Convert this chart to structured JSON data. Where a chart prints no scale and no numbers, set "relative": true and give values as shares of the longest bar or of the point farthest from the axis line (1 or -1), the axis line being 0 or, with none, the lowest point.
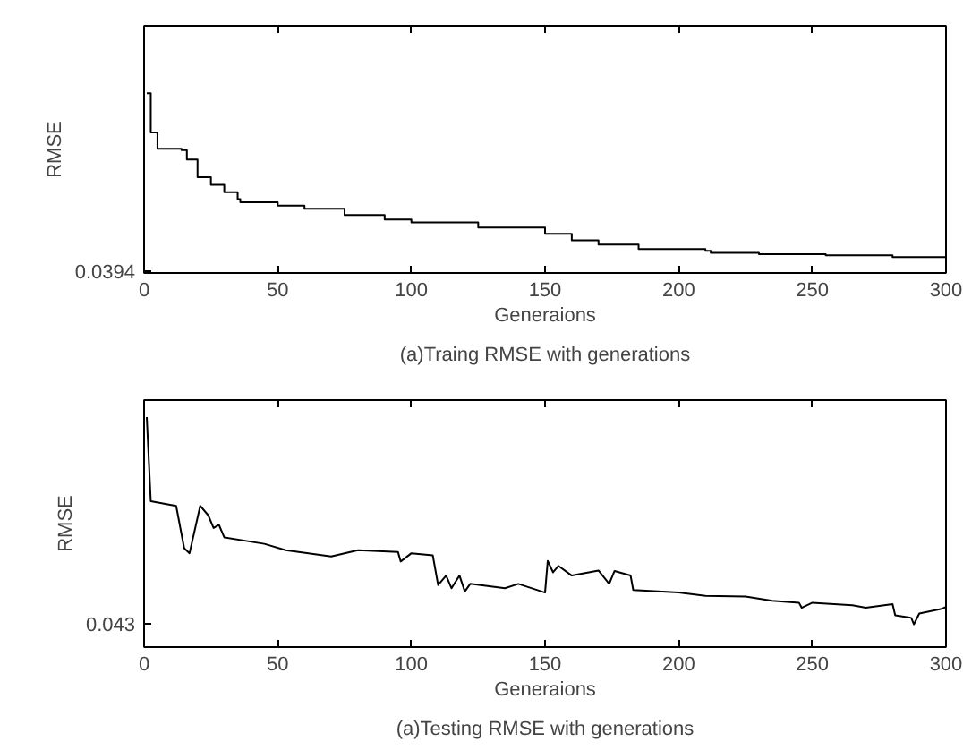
{
  "chart_data": [
    {
      "type": "step",
      "title": "(a)Traing RMSE with generations",
      "xlabel": "Generaions",
      "ylabel": "RMSE",
      "relative": true,
      "xlim": [
        0,
        300
      ],
      "xticks": [
        0,
        50,
        100,
        150,
        200,
        250,
        300
      ],
      "annotations": [
        "0.0394"
      ],
      "series": [
        {
          "color": "#000000",
          "x": [
            1,
            2.5,
            5,
            14,
            16,
            20,
            25,
            30,
            35,
            36,
            50,
            60,
            75,
            90,
            100,
            125,
            150,
            160,
            170,
            185,
            210,
            212,
            230,
            255,
            280,
            300
          ],
          "values": [
            1.0,
            0.782,
            0.691,
            0.684,
            0.632,
            0.533,
            0.491,
            0.449,
            0.411,
            0.393,
            0.375,
            0.358,
            0.323,
            0.298,
            0.281,
            0.253,
            0.218,
            0.182,
            0.158,
            0.133,
            0.123,
            0.112,
            0.105,
            0.098,
            0.088,
            0.077
          ]
        }
      ]
    },
    {
      "type": "line",
      "title": "(a)Testing RMSE with generations",
      "xlabel": "Generaions",
      "ylabel": "RMSE",
      "relative": true,
      "xlim": [
        0,
        300
      ],
      "xticks": [
        0,
        50,
        100,
        150,
        200,
        250,
        300
      ],
      "annotations": [
        "0.043"
      ],
      "series": [
        {
          "color": "#000000",
          "x": [
            1,
            2.5,
            12,
            15,
            17,
            21,
            24,
            26,
            28,
            30,
            45,
            53,
            70,
            80,
            95,
            96,
            100,
            108,
            110,
            113,
            115,
            118,
            120,
            122,
            135,
            140,
            150,
            151,
            153,
            155,
            160,
            170,
            174,
            176,
            182,
            183,
            200,
            210,
            225,
            235,
            245,
            246,
            250,
            265,
            270,
            280,
            281,
            287,
            288,
            290,
            298,
            300
          ],
          "values": [
            1.0,
            0.634,
            0.614,
            0.43,
            0.408,
            0.614,
            0.573,
            0.518,
            0.532,
            0.477,
            0.449,
            0.421,
            0.394,
            0.421,
            0.413,
            0.372,
            0.408,
            0.399,
            0.27,
            0.311,
            0.256,
            0.311,
            0.242,
            0.275,
            0.256,
            0.275,
            0.237,
            0.375,
            0.325,
            0.353,
            0.311,
            0.333,
            0.275,
            0.331,
            0.311,
            0.248,
            0.237,
            0.223,
            0.22,
            0.201,
            0.193,
            0.171,
            0.193,
            0.182,
            0.171,
            0.187,
            0.138,
            0.127,
            0.099,
            0.146,
            0.165,
            0.174
          ]
        }
      ]
    }
  ]
}
